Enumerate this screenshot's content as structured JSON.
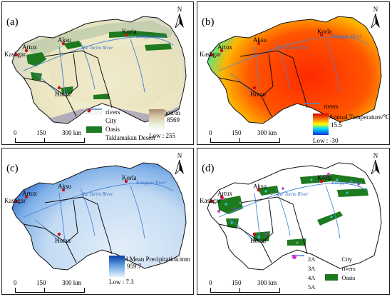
{
  "panels": {
    "a": {
      "label": "(a)",
      "north": "N",
      "scale": [
        "0",
        "150",
        "300 km"
      ],
      "legend": {
        "rivers": "rivers",
        "city": "City",
        "oasis": "Oasis",
        "desert": "Taklamakan Desert",
        "ramp_title": "Elevation/m",
        "high": "High : 8569",
        "low": "Low : 255"
      },
      "cities": [
        "Kashgar",
        "Artux",
        "Aksu",
        "Korla",
        "Hotan"
      ],
      "rivers": [
        "the Tarim River",
        "Kongque River"
      ]
    },
    "b": {
      "label": "(b)",
      "north": "N",
      "scale": [
        "0",
        "150",
        "300 km"
      ],
      "legend": {
        "rivers": "rivers",
        "ramp_title": "Mean Annual Temperature/℃",
        "high": "High : 15.5",
        "low": "Low : -30"
      },
      "cities": [
        "Kashgar",
        "Artux",
        "Aksu",
        "Korla",
        "Hotan"
      ],
      "rivers": [
        "the Tarim River",
        "Kongque River"
      ]
    },
    "c": {
      "label": "(c)",
      "north": "N",
      "scale": [
        "0",
        "150",
        "300 km"
      ],
      "legend": {
        "ramp_title": "Annual Mean Precipitation/mm",
        "high": "High : 959.7",
        "low": "Low : 7.3"
      },
      "cities": [
        "Kashgar",
        "Artux",
        "Aksu",
        "Korla",
        "Hotan"
      ],
      "rivers": [
        "the Tarim River",
        "Kongque River"
      ]
    },
    "d": {
      "label": "(d)",
      "north": "N",
      "scale": [
        "0",
        "150",
        "300 km"
      ],
      "legend": {
        "a2": "2A",
        "a3": "3A",
        "a4": "4A",
        "a5": "5A",
        "city": "City",
        "rivers": "rivers",
        "oasis": "Oasis"
      },
      "cities": [
        "Kashgar",
        "Artux",
        "Aksu",
        "Korla",
        "Hotan"
      ],
      "rivers": [
        "the Tarim River",
        "Kongque River"
      ]
    }
  },
  "colors": {
    "river": "#4a86d6",
    "city": "#c0141c",
    "oasis": "#1e7a1e",
    "border": "#111111",
    "a2": "#9aa0a8",
    "a3": "#2fd1c8",
    "a4": "#8c34d8",
    "a5": "#e22fd2"
  }
}
